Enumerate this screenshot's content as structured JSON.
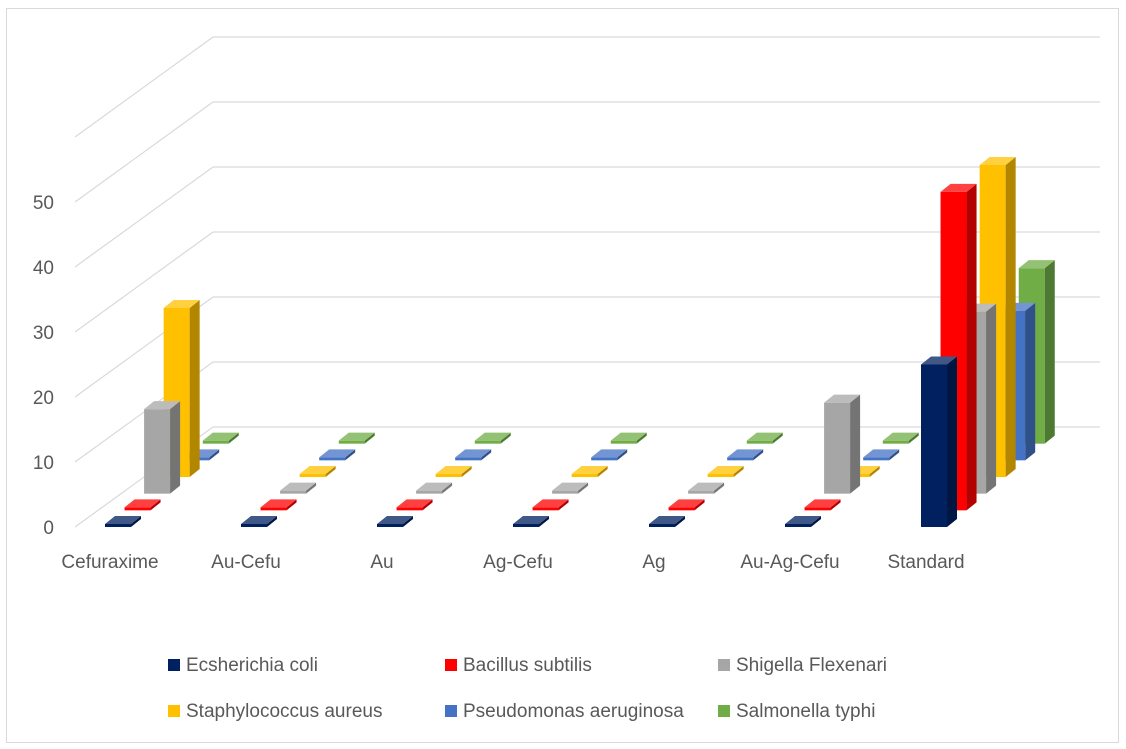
{
  "chart_data": {
    "type": "bar",
    "variant": "3d-column",
    "title": "",
    "xlabel": "",
    "ylabel": "",
    "ylim": [
      0,
      50
    ],
    "yticks": [
      0,
      10,
      20,
      30,
      40,
      50
    ],
    "grid": true,
    "legend_position": "bottom",
    "categories": [
      "Cefuraxime",
      "Au-Cefu",
      "Au",
      "Ag-Cefu",
      "Ag",
      "Au-Ag-Cefu",
      "Standard"
    ],
    "series": [
      {
        "name": "Ecsherichia coli",
        "color": "#002060",
        "values": [
          0,
          0,
          0,
          0,
          0,
          0,
          25
        ]
      },
      {
        "name": "Bacillus subtilis",
        "color": "#ff0000",
        "values": [
          0,
          0,
          0,
          0,
          0,
          0,
          49
        ]
      },
      {
        "name": "Shigella Flexenari",
        "color": "#a6a6a6",
        "values": [
          13,
          0,
          0,
          0,
          0,
          14,
          28
        ]
      },
      {
        "name": "Staphylococcus aureus",
        "color": "#ffc000",
        "values": [
          26,
          0,
          0,
          0,
          0,
          0,
          48
        ]
      },
      {
        "name": "Pseudomonas aeruginosa",
        "color": "#4472c4",
        "values": [
          0,
          0,
          0,
          0,
          0,
          0,
          23
        ]
      },
      {
        "name": "Salmonella typhi",
        "color": "#70ad47",
        "values": [
          0,
          0,
          0,
          0,
          0,
          0,
          27
        ]
      }
    ]
  }
}
